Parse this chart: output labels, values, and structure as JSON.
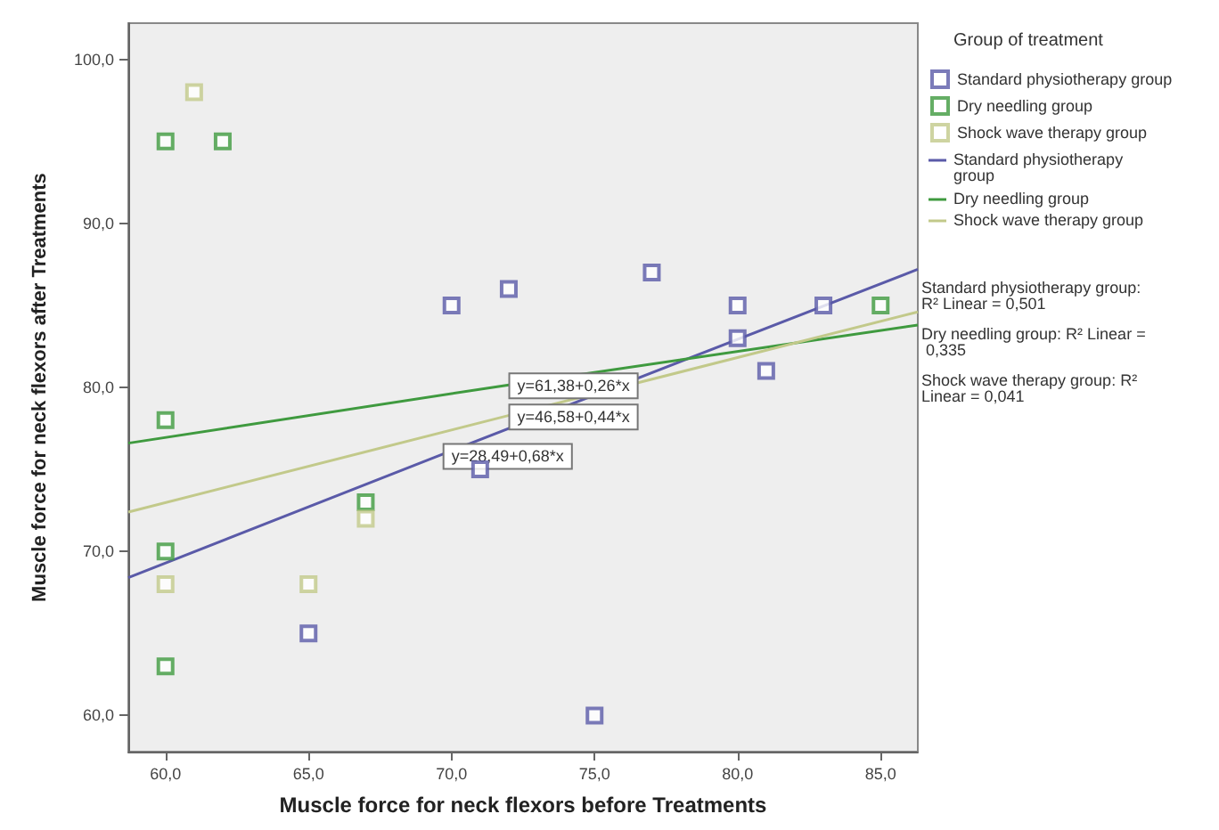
{
  "chart_data": {
    "type": "scatter",
    "xlabel": "Muscle force for neck flexors before Treatments",
    "ylabel": "Muscle force for neck flexors after Treatments",
    "legend_title": "Group of treatment",
    "legend": "right",
    "grid": false,
    "marker": "square",
    "xlim": [
      58.7,
      86.3
    ],
    "ylim": [
      57.8,
      102.2
    ],
    "xticks": [
      {
        "value": 60,
        "label": "60,0"
      },
      {
        "value": 65,
        "label": "65,0"
      },
      {
        "value": 70,
        "label": "70,0"
      },
      {
        "value": 75,
        "label": "75,0"
      },
      {
        "value": 80,
        "label": "80,0"
      },
      {
        "value": 85,
        "label": "85,0"
      }
    ],
    "yticks": [
      {
        "value": 60,
        "label": "60,0"
      },
      {
        "value": 70,
        "label": "70,0"
      },
      {
        "value": 80,
        "label": "80,0"
      },
      {
        "value": 90,
        "label": "90,0"
      },
      {
        "value": 100,
        "label": "100,0"
      }
    ],
    "series": [
      {
        "name": "Standard physiotherapy group",
        "color": "#5a5aa8",
        "x": [
          65,
          75,
          70,
          72,
          80,
          83,
          77,
          80,
          81,
          71
        ],
        "values": [
          65,
          60,
          85,
          86,
          85,
          85,
          87,
          83,
          81,
          75
        ]
      },
      {
        "name": "Dry needling group",
        "color": "#3f9a3f",
        "x": [
          60,
          62,
          60,
          60,
          60,
          67,
          85
        ],
        "values": [
          95,
          95,
          78,
          70,
          63,
          73,
          85
        ]
      },
      {
        "name": "Shock wave therapy group",
        "color": "#c2c98a",
        "x": [
          61,
          60,
          65,
          67
        ],
        "values": [
          98,
          68,
          68,
          72
        ]
      },
      {
        "name": "Standard physiotherapy group",
        "type": "line",
        "marker": "none",
        "color": "#5a5aa8",
        "x": [
          58.7,
          69.5,
          86.3
        ],
        "values": [
          68.4,
          75.8,
          87.2
        ],
        "value_labels": [
          null,
          "y=28,49+0,68*x",
          null
        ]
      },
      {
        "name": "Dry needling group",
        "type": "line",
        "marker": "none",
        "color": "#3f9a3f",
        "x": [
          58.7,
          71.8,
          86.3
        ],
        "values": [
          76.6,
          80.1,
          83.8
        ],
        "value_labels": [
          null,
          "y=61,38+0,26*x",
          null
        ]
      },
      {
        "name": "Shock wave therapy group",
        "type": "line",
        "marker": "none",
        "color": "#c2c98a",
        "x": [
          58.7,
          71.8,
          86.3
        ],
        "values": [
          72.4,
          78.2,
          84.6
        ],
        "value_labels": [
          null,
          "y=46,58+0,44*x",
          null
        ]
      }
    ],
    "annotations": [
      "Standard physiotherapy group: R² Linear = 0,501",
      "Dry needling group: R² Linear = 0,335",
      "Shock wave therapy group: R² Linear = 0,041"
    ]
  }
}
